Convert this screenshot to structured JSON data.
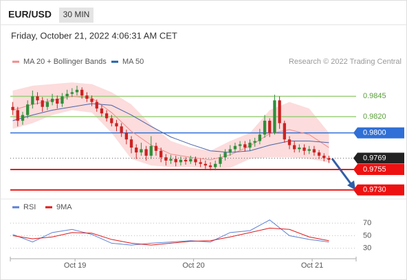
{
  "header": {
    "symbol": "EUR/USD",
    "interval": "30 MIN",
    "timestamp": "Friday, October 21, 2022 4:06:31 AM CET"
  },
  "chart_data": [
    {
      "type": "candlestick",
      "credit": "Research © 2022 Trading Central",
      "legend": [
        {
          "name": "MA 20 + Bollinger Bands",
          "color": "#f08a8a"
        },
        {
          "name": "MA 50",
          "color": "#1f5fa8"
        }
      ],
      "xlim": [
        -0.5,
        69.5
      ],
      "ylim": [
        0.9723,
        0.9879
      ],
      "x": [
        0,
        1,
        2,
        3,
        4,
        5,
        6,
        7,
        8,
        9,
        10,
        11,
        12,
        13,
        14,
        15,
        16,
        17,
        18,
        19,
        20,
        21,
        22,
        23,
        24,
        25,
        26,
        27,
        28,
        29,
        30,
        31,
        32,
        33,
        34,
        35,
        36,
        37,
        38,
        39,
        40,
        41,
        42,
        43,
        44,
        45,
        46,
        47,
        48,
        49,
        50,
        51,
        52,
        53,
        54,
        55,
        56,
        57,
        58,
        59,
        60,
        61,
        62,
        63,
        64
      ],
      "up_color": "#2f8f3a",
      "down_color": "#cc2222",
      "open": [
        0.9832,
        0.9828,
        0.9815,
        0.9822,
        0.9835,
        0.9845,
        0.984,
        0.9832,
        0.9838,
        0.9842,
        0.9836,
        0.9845,
        0.9848,
        0.985,
        0.9853,
        0.9846,
        0.9842,
        0.9838,
        0.983,
        0.9824,
        0.9818,
        0.9812,
        0.9808,
        0.98,
        0.9792,
        0.9782,
        0.9776,
        0.978,
        0.9772,
        0.9784,
        0.9778,
        0.977,
        0.9766,
        0.9768,
        0.9764,
        0.9767,
        0.9765,
        0.9768,
        0.9764,
        0.9762,
        0.976,
        0.9758,
        0.9762,
        0.977,
        0.9776,
        0.978,
        0.9784,
        0.9786,
        0.9782,
        0.9788,
        0.979,
        0.9798,
        0.9815,
        0.98,
        0.984,
        0.9812,
        0.9792,
        0.9785,
        0.978,
        0.9782,
        0.9778,
        0.978,
        0.9776,
        0.9772,
        0.9769
      ],
      "high": [
        0.9838,
        0.9832,
        0.9826,
        0.984,
        0.9852,
        0.985,
        0.9844,
        0.9842,
        0.9848,
        0.9846,
        0.9849,
        0.9853,
        0.9855,
        0.9858,
        0.9856,
        0.985,
        0.9846,
        0.9841,
        0.9834,
        0.9828,
        0.9822,
        0.9816,
        0.9812,
        0.9804,
        0.9796,
        0.9786,
        0.9788,
        0.9784,
        0.9796,
        0.9788,
        0.9782,
        0.9774,
        0.9773,
        0.9772,
        0.9771,
        0.977,
        0.9772,
        0.9771,
        0.9768,
        0.9766,
        0.9764,
        0.9766,
        0.9774,
        0.978,
        0.9785,
        0.9788,
        0.979,
        0.979,
        0.9792,
        0.9794,
        0.9805,
        0.9822,
        0.9818,
        0.9847,
        0.9845,
        0.9815,
        0.9796,
        0.979,
        0.9786,
        0.9786,
        0.9784,
        0.9784,
        0.9779,
        0.9775,
        0.9772
      ],
      "low": [
        0.9822,
        0.9808,
        0.981,
        0.9818,
        0.983,
        0.9835,
        0.9826,
        0.9828,
        0.9834,
        0.983,
        0.9832,
        0.9841,
        0.9844,
        0.9846,
        0.9842,
        0.9838,
        0.9833,
        0.9826,
        0.982,
        0.9814,
        0.9808,
        0.9802,
        0.9795,
        0.9786,
        0.9775,
        0.9768,
        0.9772,
        0.9766,
        0.9768,
        0.9772,
        0.9764,
        0.976,
        0.9762,
        0.9759,
        0.976,
        0.9761,
        0.9762,
        0.976,
        0.9758,
        0.9756,
        0.9754,
        0.9754,
        0.9758,
        0.9766,
        0.9772,
        0.9776,
        0.9779,
        0.9777,
        0.9778,
        0.9783,
        0.9786,
        0.9794,
        0.9795,
        0.9798,
        0.9805,
        0.9788,
        0.978,
        0.9776,
        0.9776,
        0.9773,
        0.9774,
        0.9772,
        0.9768,
        0.9765,
        0.9763
      ],
      "close": [
        0.9828,
        0.9815,
        0.9822,
        0.9835,
        0.9845,
        0.984,
        0.9832,
        0.9838,
        0.9842,
        0.9836,
        0.9845,
        0.9848,
        0.985,
        0.9853,
        0.9846,
        0.9842,
        0.9838,
        0.983,
        0.9824,
        0.9818,
        0.9812,
        0.9808,
        0.98,
        0.9792,
        0.9782,
        0.9776,
        0.978,
        0.9772,
        0.9784,
        0.9778,
        0.977,
        0.9766,
        0.9768,
        0.9764,
        0.9767,
        0.9765,
        0.9768,
        0.9764,
        0.9762,
        0.976,
        0.9758,
        0.9762,
        0.977,
        0.9776,
        0.978,
        0.9784,
        0.9786,
        0.9782,
        0.9788,
        0.979,
        0.9798,
        0.9815,
        0.98,
        0.984,
        0.9812,
        0.9792,
        0.9785,
        0.978,
        0.9782,
        0.9778,
        0.978,
        0.9776,
        0.9772,
        0.9769,
        0.9767
      ],
      "bands": {
        "color": "#fbd3d3",
        "x": [
          0,
          4,
          8,
          12,
          16,
          20,
          24,
          28,
          32,
          36,
          40,
          44,
          48,
          52,
          56,
          60,
          64
        ],
        "upper": [
          0.9852,
          0.9858,
          0.986,
          0.9862,
          0.986,
          0.985,
          0.9835,
          0.981,
          0.979,
          0.9782,
          0.9778,
          0.979,
          0.98,
          0.9828,
          0.9838,
          0.983,
          0.98
        ],
        "lower": [
          0.9805,
          0.9812,
          0.9822,
          0.9828,
          0.9825,
          0.98,
          0.9768,
          0.976,
          0.9758,
          0.9758,
          0.9756,
          0.9757,
          0.9768,
          0.977,
          0.977,
          0.9768,
          0.9764
        ]
      },
      "ma": [
        {
          "color": "#f08a8a",
          "x": [
            0,
            4,
            8,
            12,
            16,
            20,
            24,
            28,
            32,
            36,
            40,
            44,
            48,
            52,
            56,
            60,
            64
          ],
          "values": [
            0.9828,
            0.9835,
            0.984,
            0.9845,
            0.9843,
            0.9825,
            0.9802,
            0.9785,
            0.9774,
            0.977,
            0.9767,
            0.9773,
            0.9784,
            0.9799,
            0.9804,
            0.9798,
            0.9782
          ]
        },
        {
          "color": "#4a62a8",
          "x": [
            0,
            4,
            8,
            12,
            16,
            20,
            24,
            28,
            32,
            36,
            40,
            44,
            48,
            52,
            56,
            60,
            64
          ],
          "values": [
            0.9815,
            0.9822,
            0.9828,
            0.9832,
            0.9836,
            0.9834,
            0.9822,
            0.9808,
            0.9795,
            0.9786,
            0.9778,
            0.9776,
            0.9778,
            0.9785,
            0.979,
            0.979,
            0.9788
          ]
        }
      ],
      "levels": [
        {
          "value": 0.9845,
          "label": "0.9845",
          "color": "#9bcf7a",
          "box": false
        },
        {
          "value": 0.982,
          "label": "0.9820",
          "color": "#9bcf7a",
          "box": false
        },
        {
          "value": 0.98,
          "label": "0.9800",
          "color": "#2f6fd6",
          "box": true
        },
        {
          "value": 0.9769,
          "label": "0.9769",
          "color": "#222222",
          "box": true,
          "dotted": true
        },
        {
          "value": 0.9755,
          "label": "0.9755",
          "color": "#ee1111",
          "box": true
        },
        {
          "value": 0.973,
          "label": "0.9730",
          "color": "#ee1111",
          "box": true
        }
      ]
    },
    {
      "type": "line",
      "ylim": [
        21,
        81
      ],
      "yticks": [
        70,
        50,
        30
      ],
      "xlim": [
        -0.5,
        69.5
      ],
      "xticks": [
        {
          "value": 12.6,
          "label": "Oct 19"
        },
        {
          "value": 36.6,
          "label": "Oct 20"
        },
        {
          "value": 60.6,
          "label": "Oct 21"
        }
      ],
      "series": [
        {
          "name": "RSI",
          "color": "#5b7fd6",
          "x": [
            0,
            4,
            8,
            12,
            16,
            20,
            24,
            28,
            32,
            36,
            40,
            44,
            48,
            52,
            56,
            60,
            64
          ],
          "values": [
            52,
            40,
            55,
            60,
            52,
            38,
            35,
            38,
            40,
            42,
            40,
            55,
            58,
            75,
            50,
            44,
            40
          ]
        },
        {
          "name": "9MA",
          "color": "#e01818",
          "x": [
            0,
            4,
            8,
            12,
            16,
            20,
            24,
            28,
            32,
            36,
            40,
            44,
            48,
            52,
            56,
            60,
            64
          ],
          "values": [
            50,
            45,
            48,
            55,
            54,
            44,
            38,
            35,
            38,
            41,
            42,
            48,
            55,
            62,
            60,
            48,
            42
          ]
        }
      ]
    }
  ]
}
